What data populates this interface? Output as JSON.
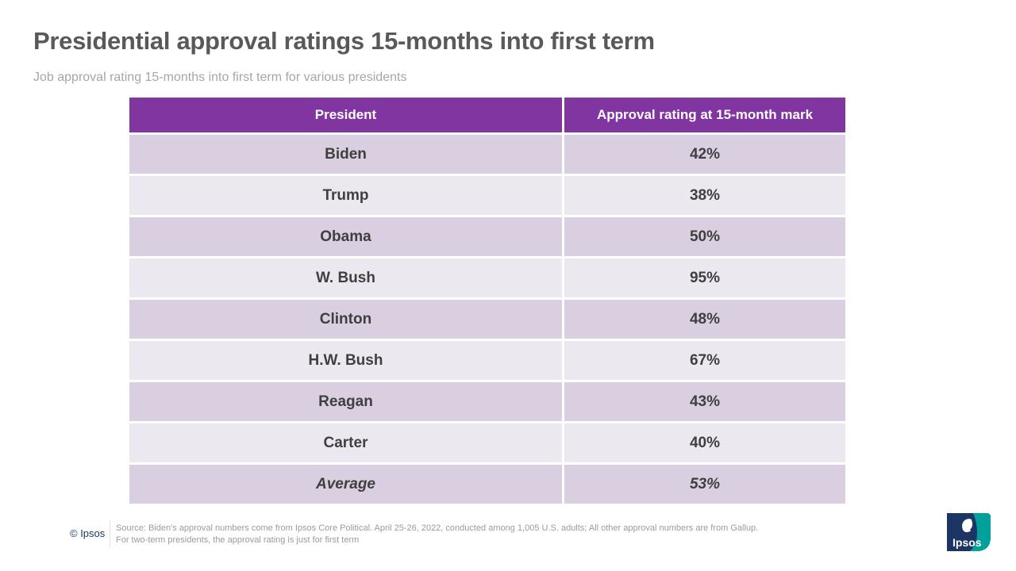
{
  "header": {
    "title": "Presidential approval ratings 15-months into first term",
    "subtitle": "Job approval rating 15-months into first term for various presidents"
  },
  "table": {
    "columns": [
      "President",
      "Approval rating at 15-month mark"
    ],
    "rows": [
      {
        "president": "Biden",
        "rating": "42%"
      },
      {
        "president": "Trump",
        "rating": "38%"
      },
      {
        "president": "Obama",
        "rating": "50%"
      },
      {
        "president": "W. Bush",
        "rating": "95%"
      },
      {
        "president": "Clinton",
        "rating": "48%"
      },
      {
        "president": "H.W. Bush",
        "rating": "67%"
      },
      {
        "president": "Reagan",
        "rating": "43%"
      },
      {
        "president": "Carter",
        "rating": "40%"
      },
      {
        "president": "Average",
        "rating": "53%",
        "italic": true
      }
    ]
  },
  "chart_data": {
    "type": "table",
    "title": "Presidential approval ratings 15-months into first term",
    "subtitle": "Job approval rating 15-months into first term for various presidents",
    "columns": [
      "President",
      "Approval rating at 15-month mark"
    ],
    "categories": [
      "Biden",
      "Trump",
      "Obama",
      "W. Bush",
      "Clinton",
      "H.W. Bush",
      "Reagan",
      "Carter",
      "Average"
    ],
    "values": [
      42,
      38,
      50,
      95,
      48,
      67,
      43,
      40,
      53
    ],
    "unit": "%"
  },
  "footer": {
    "copyright": "© Ipsos",
    "source_line1": "Source: Biden's approval numbers come from Ipsos Core Political.  April 25-26, 2022, conducted among 1,005 U.S. adults; All other approval numbers are from Gallup.",
    "source_line2": "For two-term presidents, the approval rating is just for first term",
    "logo_text": "Ipsos"
  },
  "colors": {
    "header_purple": "#8135A0",
    "row_dark": "#D9CFE1",
    "row_light": "#ECE8F0",
    "title_gray": "#595959",
    "subtitle_gray": "#A6A6A6",
    "footer_navy": "#1B3667",
    "logo_navy": "#1B3664",
    "logo_teal": "#00A19A"
  }
}
